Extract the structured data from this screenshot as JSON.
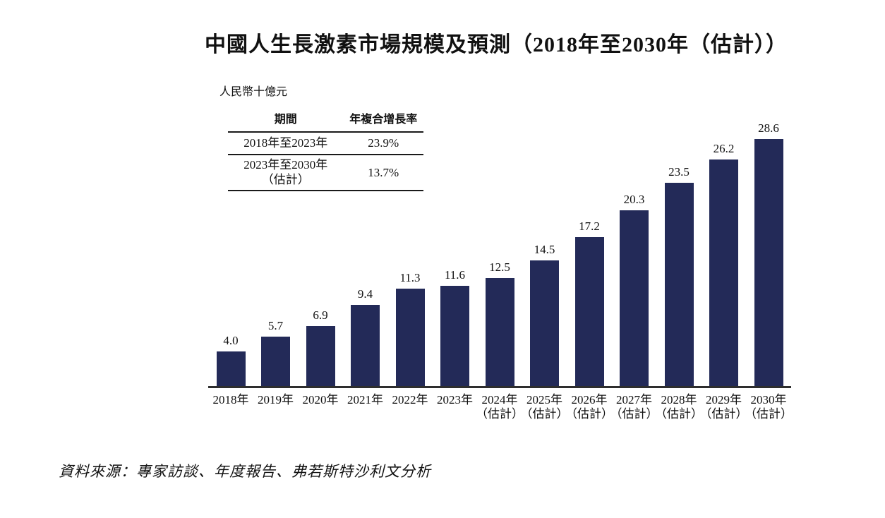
{
  "title": "中國人生長激素市場規模及預測（2018年至2030年（估計））",
  "unit_label": "人民幣十億元",
  "cagr_table": {
    "headers": [
      "期間",
      "年複合增長率"
    ],
    "rows": [
      {
        "period": "2018年至2023年",
        "cagr": "23.9%"
      },
      {
        "period": "2023年至2030年\n（估計）",
        "cagr": "13.7%"
      }
    ]
  },
  "source": "資料來源：專家訪談、年度報告、弗若斯特沙利文分析",
  "colors": {
    "bar": "#232a58",
    "axis": "#2e2e2e",
    "text": "#111111"
  },
  "chart_data": {
    "type": "bar",
    "title": "中國人生長激素市場規模及預測（2018年至2030年（估計））",
    "xlabel": "",
    "ylabel": "人民幣十億元",
    "categories": [
      "2018年",
      "2019年",
      "2020年",
      "2021年",
      "2022年",
      "2023年",
      "2024年\n（估計）",
      "2025年\n（估計）",
      "2026年\n（估計）",
      "2027年\n（估計）",
      "2028年\n（估計）",
      "2029年\n（估計）",
      "2030年\n（估計）"
    ],
    "values": [
      4.0,
      5.7,
      6.9,
      9.4,
      11.3,
      11.6,
      12.5,
      14.5,
      17.2,
      20.3,
      23.5,
      26.2,
      28.6
    ],
    "value_labels": [
      "4.0",
      "5.7",
      "6.9",
      "9.4",
      "11.3",
      "11.6",
      "12.5",
      "14.5",
      "17.2",
      "20.3",
      "23.5",
      "26.2",
      "28.6"
    ],
    "ylim": [
      0,
      30
    ],
    "grid": false,
    "legend": null,
    "annotations": {
      "cagr_2018_2023": "23.9%",
      "cagr_2023_2030": "13.7%"
    }
  }
}
